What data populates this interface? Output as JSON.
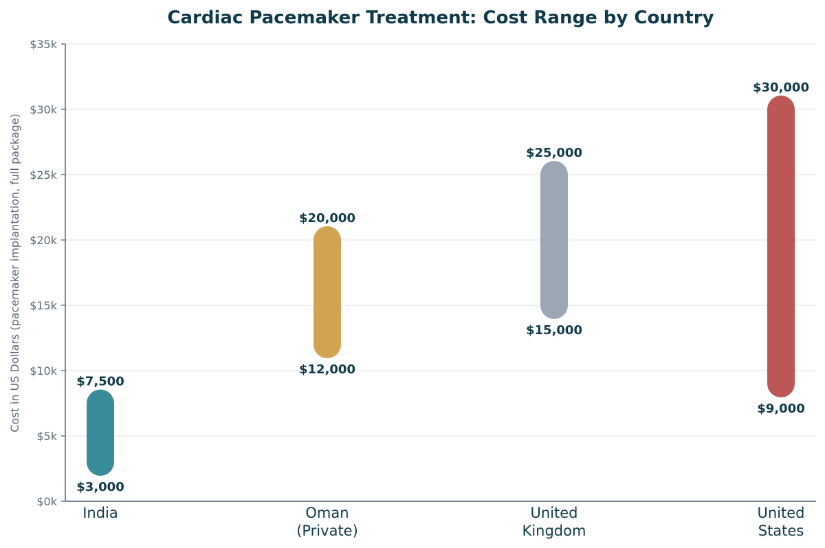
{
  "chart_data": {
    "type": "range",
    "title": "Cardiac Pacemaker Treatment: Cost Range by Country",
    "ylabel": "Cost in US Dollars (pacemaker implantation, full package)",
    "xlabel": "",
    "ylim": [
      0,
      35000
    ],
    "yticks": [
      {
        "value": 0,
        "label": "$0k"
      },
      {
        "value": 5000,
        "label": "$5k"
      },
      {
        "value": 10000,
        "label": "$10k"
      },
      {
        "value": 15000,
        "label": "$15k"
      },
      {
        "value": 20000,
        "label": "$20k"
      },
      {
        "value": 25000,
        "label": "$25k"
      },
      {
        "value": 30000,
        "label": "$30k"
      },
      {
        "value": 35000,
        "label": "$35k"
      }
    ],
    "grid": true,
    "categories": [
      {
        "lines": [
          "India"
        ],
        "low": 3000,
        "high": 7500,
        "low_label": "$3,000",
        "high_label": "$7,500",
        "color": "#2a8391"
      },
      {
        "lines": [
          "Oman",
          "(Private)"
        ],
        "low": 12000,
        "high": 20000,
        "low_label": "$12,000",
        "high_label": "$20,000",
        "color": "#cf9c46"
      },
      {
        "lines": [
          "United",
          "Kingdom"
        ],
        "low": 15000,
        "high": 25000,
        "low_label": "$15,000",
        "high_label": "$25,000",
        "color": "#94a0af"
      },
      {
        "lines": [
          "United",
          "States"
        ],
        "low": 9000,
        "high": 30000,
        "low_label": "$9,000",
        "high_label": "$30,000",
        "color": "#b84a4a"
      }
    ],
    "colors": {
      "title": "#0f3a4a",
      "axis": "#4a5a66",
      "tick_text": "#5a6b78",
      "category_text": "#0f3a4a",
      "value_label": "#0f3a4a",
      "grid": "#dde2e6"
    }
  }
}
